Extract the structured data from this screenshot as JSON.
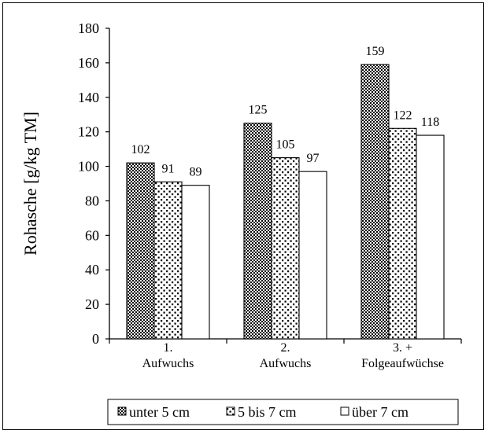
{
  "chart_data": {
    "type": "bar",
    "ylabel": "Rohasche [g/kg TM]",
    "ylim": [
      0,
      180
    ],
    "yticks": [
      0,
      20,
      40,
      60,
      80,
      100,
      120,
      140,
      160,
      180
    ],
    "categories": [
      [
        "1.",
        "Aufwuchs"
      ],
      [
        "2.",
        "Aufwuchs"
      ],
      [
        "3. +",
        "Folgeaufwüchse"
      ]
    ],
    "series": [
      {
        "name": "unter 5 cm",
        "values": [
          102,
          125,
          159
        ],
        "pattern": "checker"
      },
      {
        "name": "5 bis 7 cm",
        "values": [
          91,
          105,
          122
        ],
        "pattern": "dots"
      },
      {
        "name": "über 7 cm",
        "values": [
          89,
          97,
          118
        ],
        "pattern": "none"
      }
    ],
    "data_labels": true,
    "grid": false,
    "legend_position": "bottom"
  }
}
